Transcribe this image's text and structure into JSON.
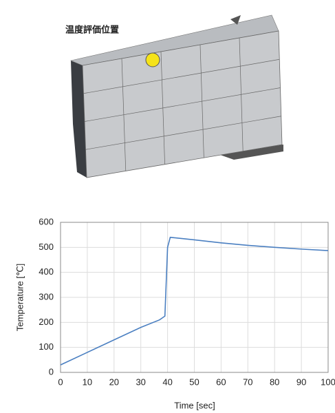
{
  "chart_data": {
    "type": "line",
    "annotation": "温度評価位置",
    "x_label": "Time [sec]",
    "y_label": "Temperature [℃]",
    "x": [
      0,
      2,
      10,
      20,
      30,
      37,
      39,
      40,
      41,
      50,
      60,
      70,
      80,
      90,
      100
    ],
    "series": [
      {
        "color": "#4a7fc1",
        "values": [
          30,
          40,
          80,
          130,
          180,
          210,
          225,
          500,
          540,
          530,
          518,
          508,
          500,
          493,
          487
        ]
      }
    ],
    "xlim": [
      0,
      100
    ],
    "xticks": [
      0,
      10,
      20,
      30,
      40,
      50,
      60,
      70,
      80,
      90,
      100
    ],
    "ylim": [
      0,
      600
    ],
    "yticks": [
      0,
      100,
      200,
      300,
      400,
      500,
      600
    ],
    "grid": true
  }
}
